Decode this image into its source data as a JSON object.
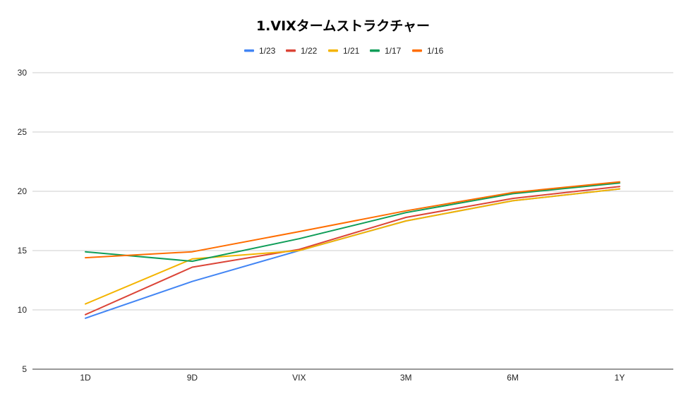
{
  "chart_data": {
    "type": "line",
    "title": "1.VIXタームストラクチャー",
    "xlabel": "",
    "ylabel": "",
    "categories": [
      "1D",
      "9D",
      "VIX",
      "3M",
      "6M",
      "1Y"
    ],
    "ylim": [
      5,
      30
    ],
    "yticks": [
      5,
      10,
      15,
      20,
      25,
      30
    ],
    "grid": true,
    "legend_position": "top",
    "series": [
      {
        "name": "1/23",
        "color": "#4285f4",
        "values": [
          9.3,
          12.4,
          15.0,
          17.5,
          19.2,
          20.2
        ]
      },
      {
        "name": "1/22",
        "color": "#db4437",
        "values": [
          9.6,
          13.6,
          15.1,
          17.8,
          19.4,
          20.4
        ]
      },
      {
        "name": "1/21",
        "color": "#f4b400",
        "values": [
          10.5,
          14.3,
          15.0,
          17.5,
          19.2,
          20.2
        ]
      },
      {
        "name": "1/17",
        "color": "#0f9d58",
        "values": [
          14.9,
          14.1,
          16.0,
          18.2,
          19.8,
          20.7
        ]
      },
      {
        "name": "1/16",
        "color": "#ff6d00",
        "values": [
          14.4,
          14.9,
          16.6,
          18.35,
          19.9,
          20.8
        ]
      }
    ]
  }
}
